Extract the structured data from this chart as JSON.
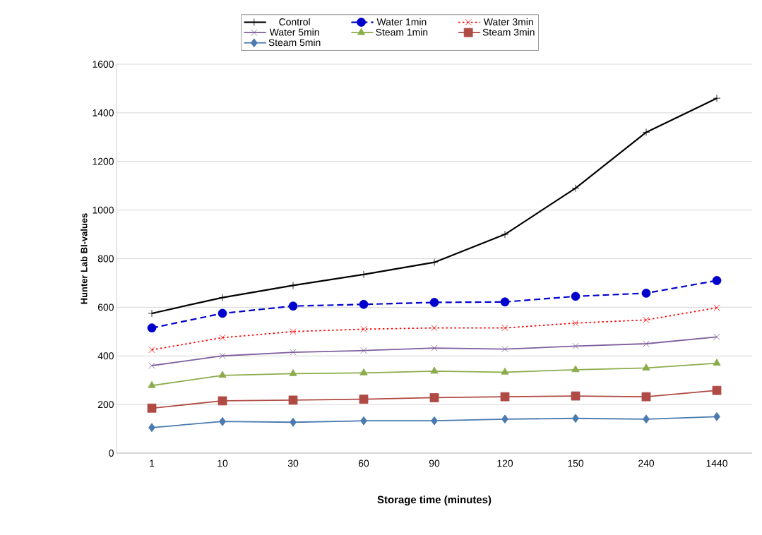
{
  "chart_data": {
    "type": "line",
    "xlabel": "Storage time (minutes)",
    "ylabel": "Hunter Lab BI-values",
    "categories": [
      "1",
      "10",
      "30",
      "60",
      "90",
      "120",
      "150",
      "240",
      "1440"
    ],
    "ylim": [
      0,
      1600
    ],
    "yticks": [
      0,
      200,
      400,
      600,
      800,
      1000,
      1200,
      1400,
      1600
    ],
    "grid": "y",
    "legend": "top",
    "series": [
      {
        "name": "Control",
        "color": "#000000",
        "marker": "plus",
        "line_style": "solid",
        "values": [
          575,
          640,
          690,
          735,
          785,
          900,
          1090,
          1320,
          1460
        ]
      },
      {
        "name": "Water 1min",
        "color": "#0000cc",
        "marker": "circle",
        "line_style": "dashed",
        "values": [
          515,
          575,
          605,
          612,
          620,
          622,
          645,
          658,
          710
        ]
      },
      {
        "name": "Water 3min",
        "color": "#ff0000",
        "marker": "cross",
        "line_style": "dotted",
        "values": [
          425,
          475,
          500,
          510,
          515,
          515,
          535,
          548,
          598
        ]
      },
      {
        "name": "Water 5min",
        "color": "#7f5f9f",
        "marker": "cross",
        "line_style": "solid",
        "values": [
          360,
          400,
          415,
          422,
          432,
          428,
          440,
          450,
          478
        ]
      },
      {
        "name": "Steam 1min",
        "color": "#8cac4c",
        "marker": "triangle",
        "line_style": "solid",
        "values": [
          278,
          320,
          327,
          330,
          337,
          333,
          343,
          350,
          370
        ]
      },
      {
        "name": "Steam 3min",
        "color": "#b04a44",
        "marker": "square",
        "line_style": "solid",
        "values": [
          185,
          215,
          218,
          222,
          228,
          232,
          235,
          232,
          258
        ]
      },
      {
        "name": "Steam 5min",
        "color": "#4a7ab0",
        "marker": "diamond",
        "line_style": "solid",
        "values": [
          105,
          130,
          127,
          133,
          133,
          140,
          143,
          140,
          150
        ]
      }
    ]
  }
}
